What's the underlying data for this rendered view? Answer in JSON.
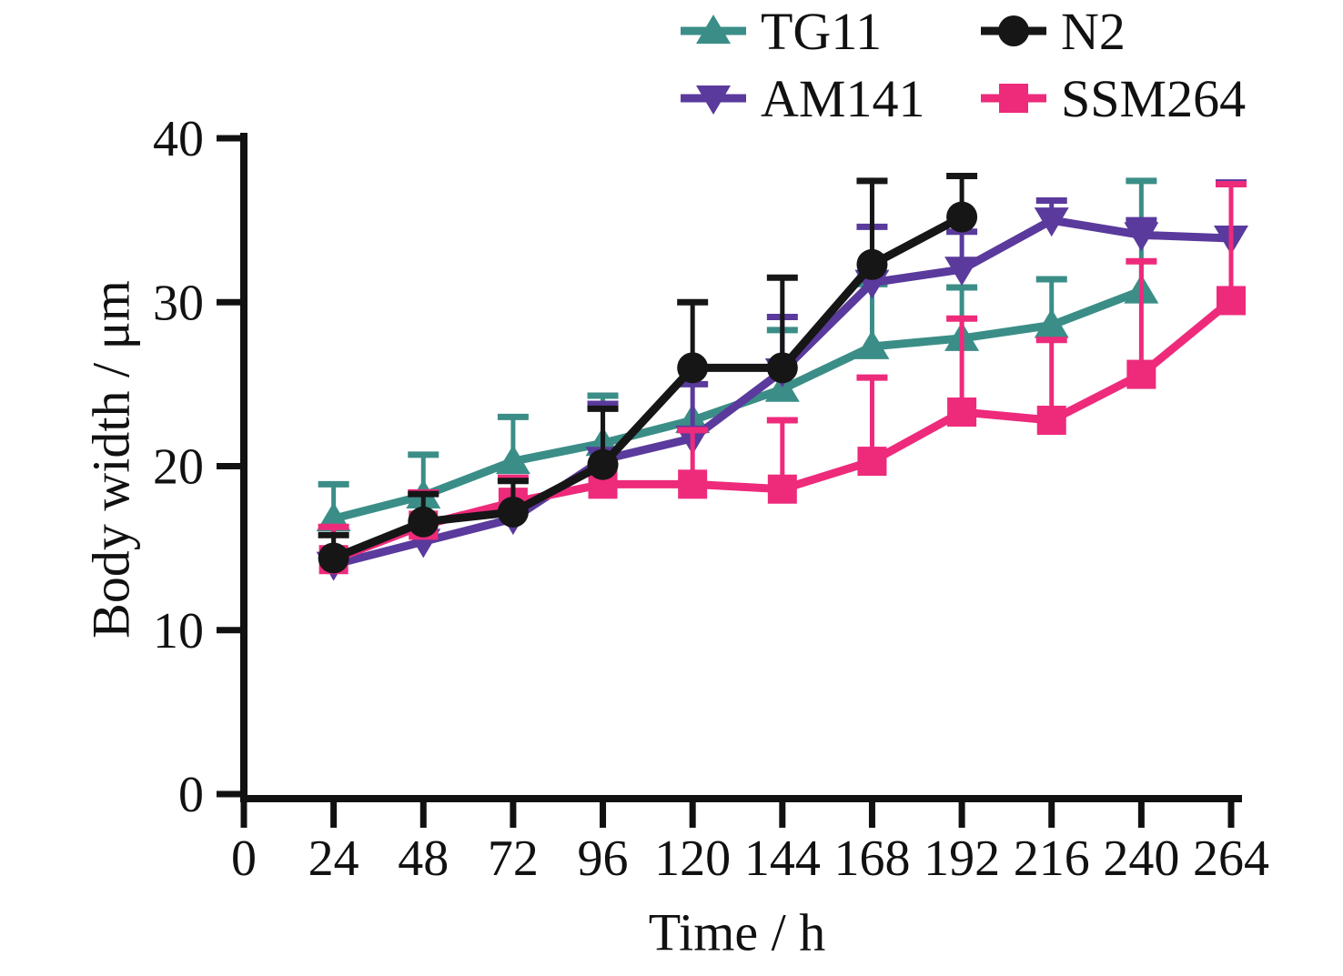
{
  "chart_data": {
    "type": "line",
    "title": "",
    "xlabel": "Time / h",
    "ylabel": "Body width / μm",
    "x_ticks": [
      0,
      24,
      48,
      72,
      96,
      120,
      144,
      168,
      192,
      216,
      240,
      264
    ],
    "y_ticks": [
      0,
      10,
      20,
      30,
      40
    ],
    "xlim": [
      0,
      264
    ],
    "ylim": [
      0,
      40
    ],
    "grid": false,
    "legend_position": "top",
    "error_bars": "upper-only",
    "axis_color": "#111111",
    "series": [
      {
        "name": "TG11",
        "color": "#3B8E87",
        "marker": "triangle-up",
        "x": [
          24,
          48,
          72,
          96,
          120,
          144,
          168,
          192,
          216,
          240
        ],
        "values": [
          16.8,
          18.2,
          20.3,
          21.4,
          22.8,
          24.7,
          27.3,
          27.8,
          28.6,
          30.7
        ],
        "err_up": [
          2.1,
          2.5,
          2.7,
          2.9,
          0,
          3.6,
          3.8,
          3.1,
          2.8,
          6.7
        ]
      },
      {
        "name": "N2",
        "color": "#161616",
        "marker": "circle",
        "x": [
          24,
          48,
          72,
          96,
          120,
          144,
          168,
          192
        ],
        "values": [
          14.4,
          16.6,
          17.2,
          20.1,
          26.0,
          26.0,
          32.3,
          35.2
        ],
        "err_up": [
          1.4,
          1.7,
          1.9,
          3.4,
          4.0,
          5.5,
          5.1,
          2.5
        ]
      },
      {
        "name": "AM141",
        "color": "#5A3A9C",
        "marker": "triangle-down",
        "x": [
          24,
          48,
          72,
          96,
          120,
          144,
          168,
          192,
          216,
          240,
          264
        ],
        "values": [
          14.0,
          15.4,
          16.8,
          20.4,
          21.7,
          25.8,
          31.2,
          32.0,
          35.0,
          34.1,
          33.9
        ],
        "err_up": [
          0,
          0,
          0,
          3.4,
          3.3,
          3.3,
          3.4,
          2.3,
          1.2,
          0.9,
          3.4
        ]
      },
      {
        "name": "SSM264",
        "color": "#EE2A7B",
        "marker": "square",
        "x": [
          24,
          48,
          72,
          96,
          120,
          144,
          168,
          192,
          216,
          240,
          264
        ],
        "values": [
          14.3,
          16.4,
          17.8,
          18.9,
          18.9,
          18.6,
          20.3,
          23.3,
          22.8,
          25.6,
          30.1
        ],
        "err_up": [
          2.0,
          2.0,
          1.5,
          0,
          3.3,
          4.2,
          5.1,
          5.7,
          4.9,
          6.9,
          7.1
        ]
      }
    ]
  }
}
